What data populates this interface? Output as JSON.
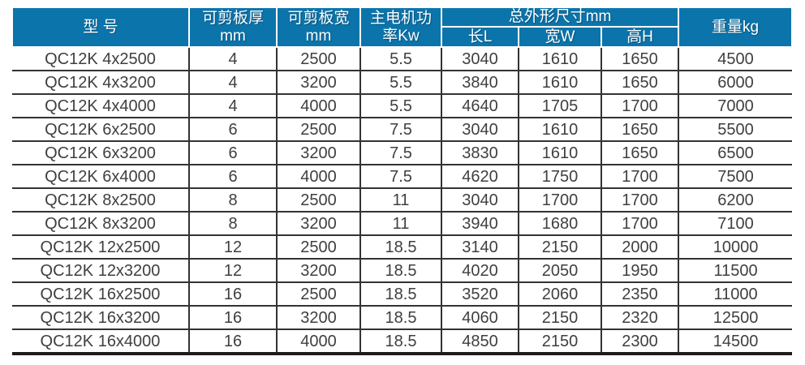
{
  "table": {
    "colors": {
      "header_bg": "#0b74ab",
      "header_text": "#ffffff",
      "body_text": "#3f3f3f",
      "grid_line": "#333333"
    },
    "headers": {
      "model": "型 号",
      "thickness_line1": "可剪板厚",
      "thickness_line2": "mm",
      "width_line1": "可剪板宽",
      "width_line2": "mm",
      "power_line1": "主电机功",
      "power_line2": "率Kw",
      "dims_group": "总外形尺寸mm",
      "dim_length": "长L",
      "dim_width": "宽W",
      "dim_height": "高H",
      "weight": "重量kg"
    },
    "rows": [
      [
        "QC12K 4x2500",
        "4",
        "2500",
        "5.5",
        "3040",
        "1610",
        "1650",
        "4500"
      ],
      [
        "QC12K 4x3200",
        "4",
        "3200",
        "5.5",
        "3840",
        "1610",
        "1650",
        "6000"
      ],
      [
        "QC12K 4x4000",
        "4",
        "4000",
        "5.5",
        "4640",
        "1705",
        "1700",
        "7000"
      ],
      [
        "QC12K 6x2500",
        "6",
        "2500",
        "7.5",
        "3040",
        "1610",
        "1650",
        "5500"
      ],
      [
        "QC12K 6x3200",
        "6",
        "3200",
        "7.5",
        "3830",
        "1610",
        "1650",
        "6500"
      ],
      [
        "QC12K 6x4000",
        "6",
        "4000",
        "7.5",
        "4620",
        "1750",
        "1700",
        "7500"
      ],
      [
        "QC12K 8x2500",
        "8",
        "2500",
        "11",
        "3040",
        "1700",
        "1700",
        "6200"
      ],
      [
        "QC12K 8x3200",
        "8",
        "3200",
        "11",
        "3940",
        "1680",
        "1700",
        "7100"
      ],
      [
        "QC12K 12x2500",
        "12",
        "2500",
        "18.5",
        "3140",
        "2150",
        "2000",
        "10000"
      ],
      [
        "QC12K 12x3200",
        "12",
        "3200",
        "18.5",
        "4020",
        "2050",
        "1950",
        "11500"
      ],
      [
        "QC12K 16x2500",
        "16",
        "2500",
        "18.5",
        "3520",
        "2060",
        "2350",
        "11000"
      ],
      [
        "QC12K 16x3200",
        "16",
        "3200",
        "18.5",
        "4060",
        "2150",
        "2320",
        "12500"
      ],
      [
        "QC12K 16x4000",
        "16",
        "4000",
        "18.5",
        "4850",
        "2150",
        "2300",
        "14500"
      ]
    ]
  },
  "chart_data": {
    "type": "table",
    "title": "",
    "columns": [
      "型 号",
      "可剪板厚mm",
      "可剪板宽mm",
      "主电机功率Kw",
      "总外形尺寸mm 长L",
      "总外形尺寸mm 宽W",
      "总外形尺寸mm 高H",
      "重量kg"
    ],
    "rows": [
      [
        "QC12K 4x2500",
        4,
        2500,
        5.5,
        3040,
        1610,
        1650,
        4500
      ],
      [
        "QC12K 4x3200",
        4,
        3200,
        5.5,
        3840,
        1610,
        1650,
        6000
      ],
      [
        "QC12K 4x4000",
        4,
        4000,
        5.5,
        4640,
        1705,
        1700,
        7000
      ],
      [
        "QC12K 6x2500",
        6,
        2500,
        7.5,
        3040,
        1610,
        1650,
        5500
      ],
      [
        "QC12K 6x3200",
        6,
        3200,
        7.5,
        3830,
        1610,
        1650,
        6500
      ],
      [
        "QC12K 6x4000",
        6,
        4000,
        7.5,
        4620,
        1750,
        1700,
        7500
      ],
      [
        "QC12K 8x2500",
        8,
        2500,
        11,
        3040,
        1700,
        1700,
        6200
      ],
      [
        "QC12K 8x3200",
        8,
        3200,
        11,
        3940,
        1680,
        1700,
        7100
      ],
      [
        "QC12K 12x2500",
        12,
        2500,
        18.5,
        3140,
        2150,
        2000,
        10000
      ],
      [
        "QC12K 12x3200",
        12,
        3200,
        18.5,
        4020,
        2050,
        1950,
        11500
      ],
      [
        "QC12K 16x2500",
        16,
        2500,
        18.5,
        3520,
        2060,
        2350,
        11000
      ],
      [
        "QC12K 16x3200",
        16,
        3200,
        18.5,
        4060,
        2150,
        2320,
        12500
      ],
      [
        "QC12K 16x4000",
        16,
        4000,
        18.5,
        4850,
        2150,
        2300,
        14500
      ]
    ]
  }
}
